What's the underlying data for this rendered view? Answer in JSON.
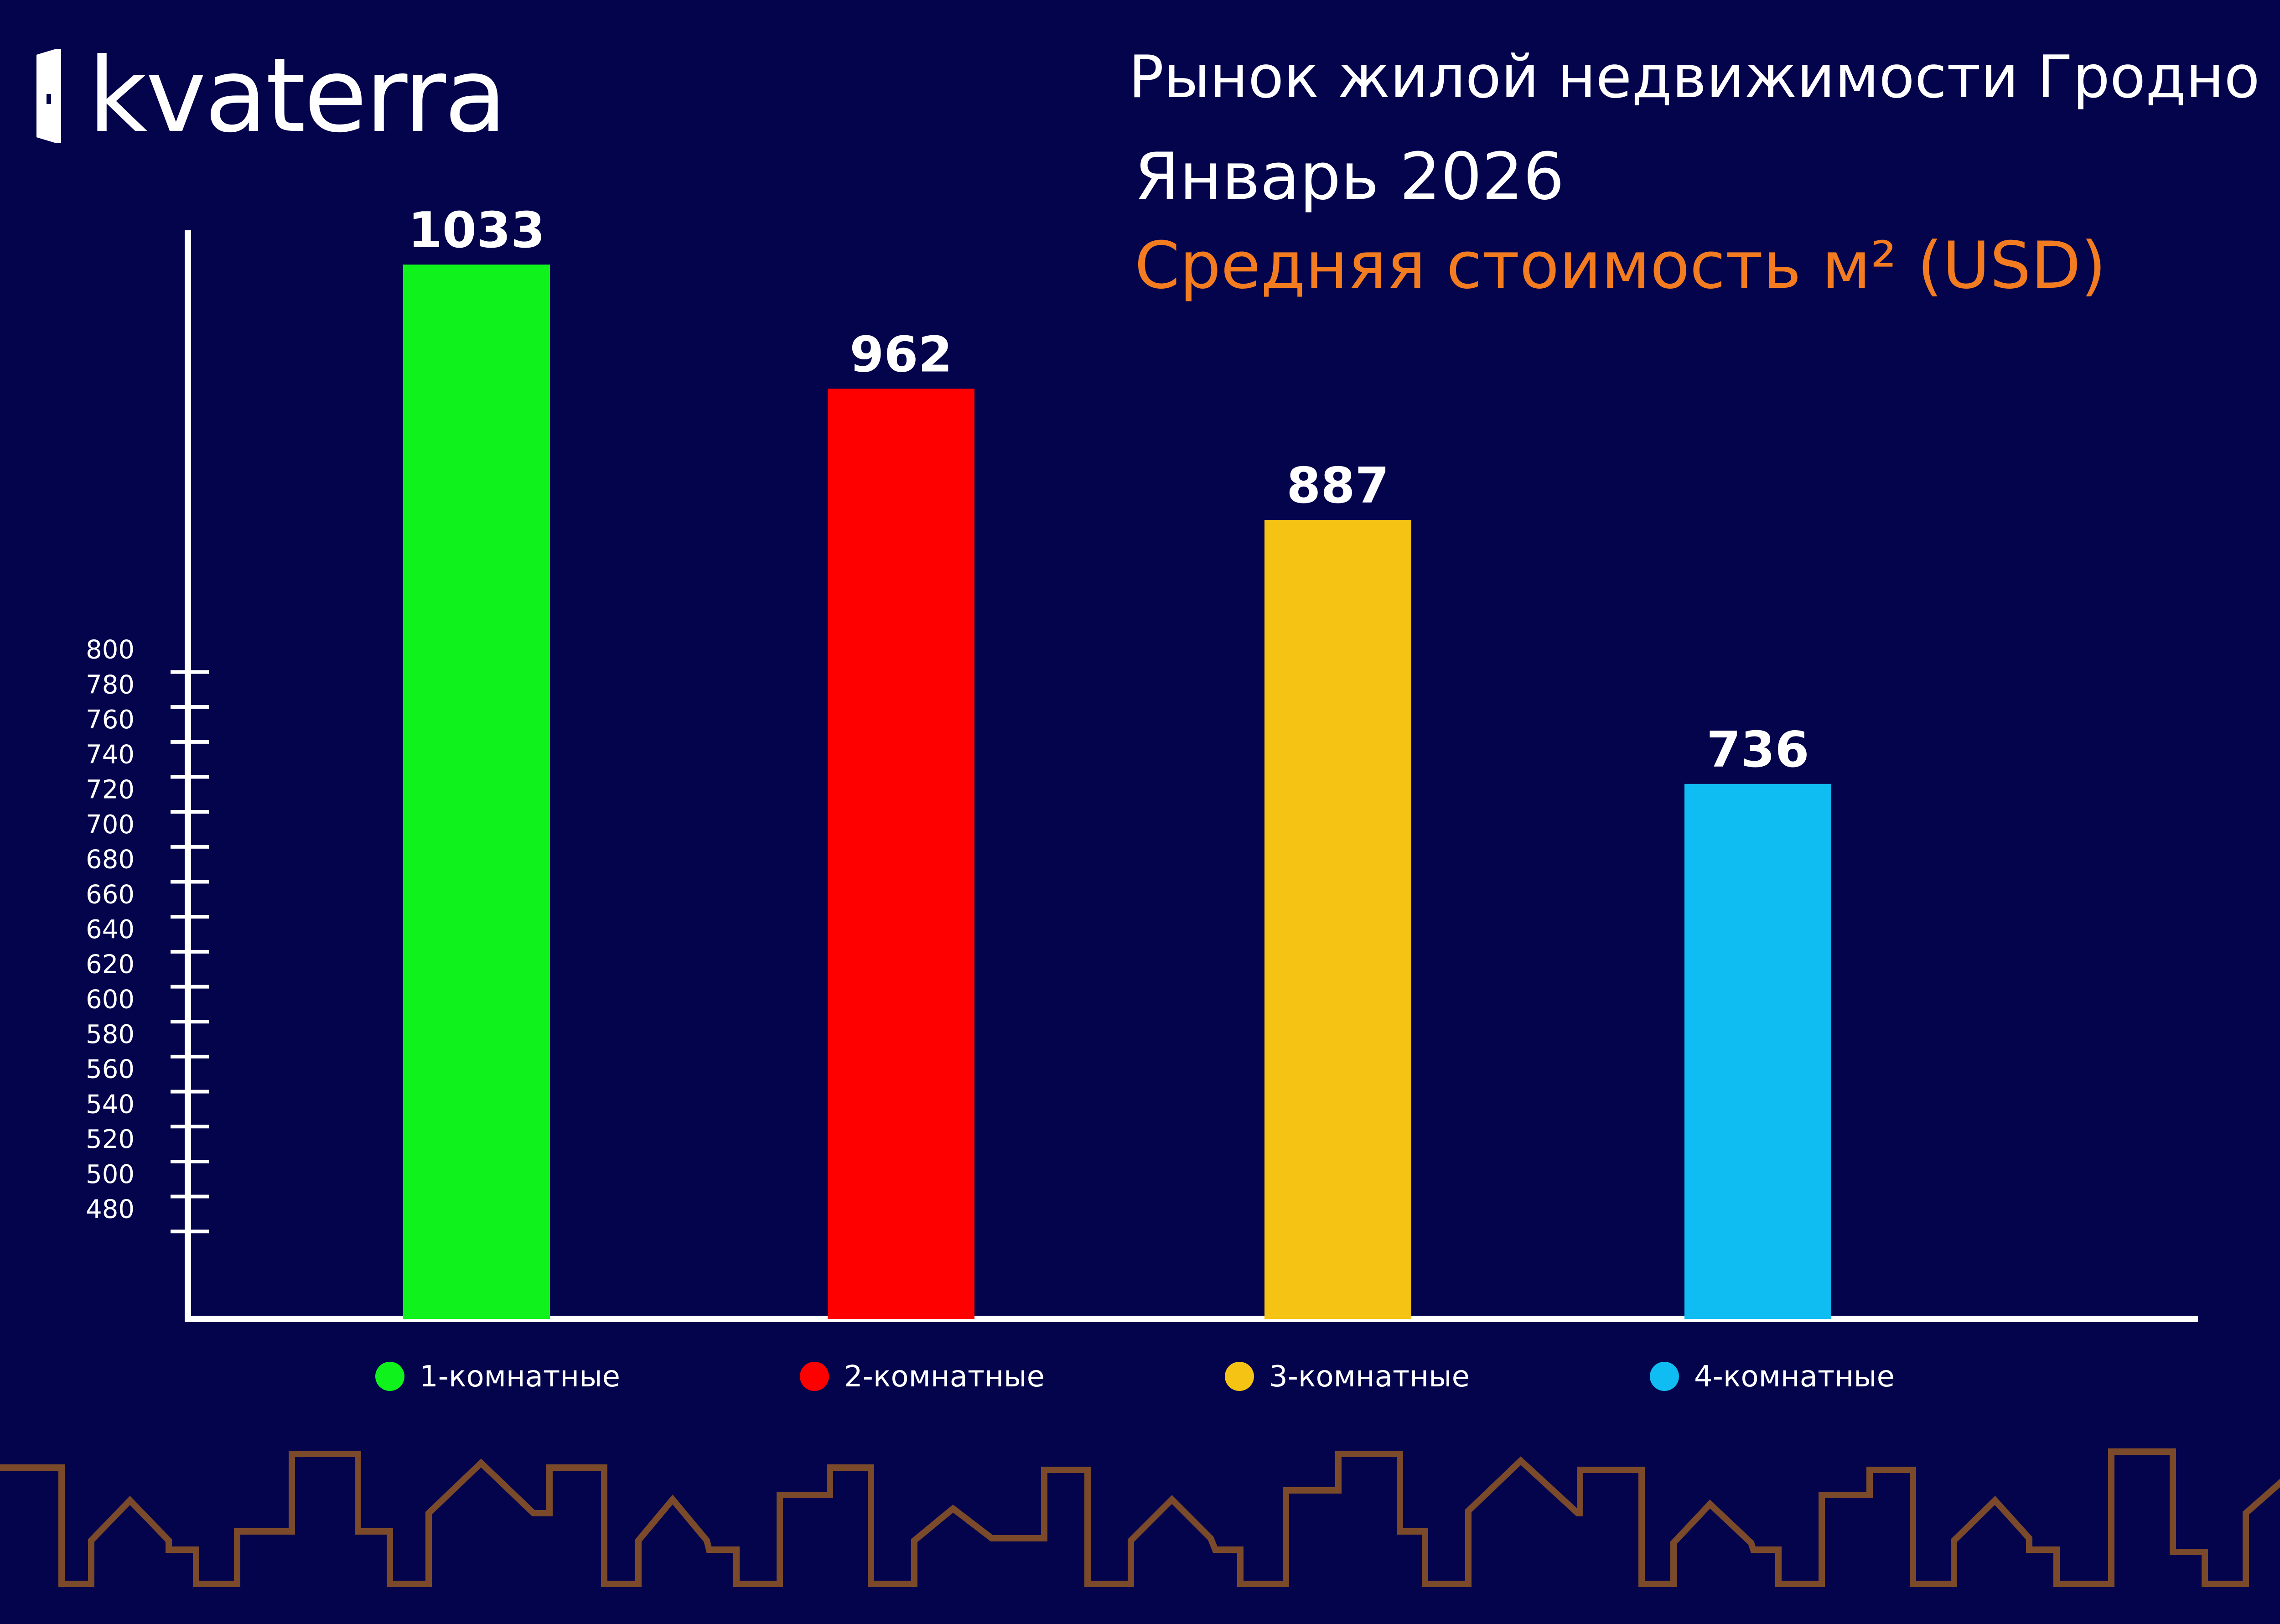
{
  "brand": {
    "name": "kvaterra"
  },
  "header": {
    "title": "Рынок жилой недвижимости Гродно",
    "period": "Январь 2026",
    "metric": "Средняя стоимость м² (USD)"
  },
  "colors": {
    "background": "#04044d",
    "accent": "#f47c20",
    "skyline": "#7a4a2a",
    "axis": "#ffffff"
  },
  "chart_data": {
    "type": "bar",
    "title": "Средняя стоимость м² (USD)",
    "categories": [
      "1-комнатные",
      "2-комнатные",
      "3-комнатные",
      "4-комнатные"
    ],
    "values": [
      1033,
      962,
      887,
      736
    ],
    "colors": [
      "#10f21c",
      "#ff0000",
      "#f4c314",
      "#10bdf2"
    ],
    "y_ticks": [
      480,
      500,
      520,
      540,
      560,
      580,
      600,
      620,
      640,
      660,
      680,
      700,
      720,
      740,
      760,
      780,
      800
    ],
    "ylim": [
      430,
      1050
    ],
    "grid": false,
    "legend": "bottom"
  }
}
